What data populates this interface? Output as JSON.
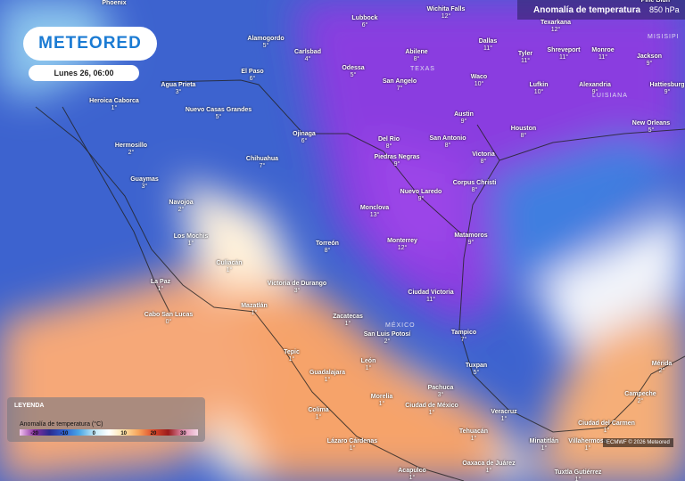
{
  "header": {
    "title": "Anomalía de temperatura",
    "level": "850 hPa"
  },
  "logo": "METEORED",
  "date": "Lunes 26, 06:00",
  "regions": [
    "TEXAS",
    "LUISIANA",
    "MISISIPI",
    "MÉXICO"
  ],
  "cities": [
    {
      "name": "Phoenix",
      "value": null
    },
    {
      "name": "Lubbock",
      "value": "6°"
    },
    {
      "name": "Wichita Falls",
      "value": "12°"
    },
    {
      "name": "Texarkana",
      "value": "12°"
    },
    {
      "name": "Pine Bluff",
      "value": null
    },
    {
      "name": "Alamogordo",
      "value": "5°"
    },
    {
      "name": "Carlsbad",
      "value": "4°"
    },
    {
      "name": "Abilene",
      "value": "8°"
    },
    {
      "name": "Dallas",
      "value": "11°"
    },
    {
      "name": "Tyler",
      "value": "11°"
    },
    {
      "name": "Shreveport",
      "value": "11°"
    },
    {
      "name": "Monroe",
      "value": "11°"
    },
    {
      "name": "Jackson",
      "value": "9°"
    },
    {
      "name": "El Paso",
      "value": "6°"
    },
    {
      "name": "Odessa",
      "value": "5°"
    },
    {
      "name": "San Angelo",
      "value": "7°"
    },
    {
      "name": "Waco",
      "value": "10°"
    },
    {
      "name": "Lufkin",
      "value": "10°"
    },
    {
      "name": "Alexandria",
      "value": "9°"
    },
    {
      "name": "Hattiesburg",
      "value": "9°"
    },
    {
      "name": "Agua Prieta",
      "value": "3°"
    },
    {
      "name": "Heroica Caborca",
      "value": "1°"
    },
    {
      "name": "Nuevo Casas Grandes",
      "value": "5°"
    },
    {
      "name": "Austin",
      "value": "9°"
    },
    {
      "name": "Houston",
      "value": "8°"
    },
    {
      "name": "New Orleans",
      "value": "5°"
    },
    {
      "name": "Ojinaga",
      "value": "6°"
    },
    {
      "name": "Del Rio",
      "value": "8°"
    },
    {
      "name": "San Antonio",
      "value": "8°"
    },
    {
      "name": "Hermosillo",
      "value": "2°"
    },
    {
      "name": "Chihuahua",
      "value": "7°"
    },
    {
      "name": "Piedras Negras",
      "value": "9°"
    },
    {
      "name": "Victoria",
      "value": "8°"
    },
    {
      "name": "Guaymas",
      "value": "3°"
    },
    {
      "name": "Corpus Christi",
      "value": "8°"
    },
    {
      "name": "Nuevo Laredo",
      "value": "9°"
    },
    {
      "name": "Navojoa",
      "value": "2°"
    },
    {
      "name": "Monclova",
      "value": "13°"
    },
    {
      "name": "Los Mochis",
      "value": "1°"
    },
    {
      "name": "Monterrey",
      "value": "12°"
    },
    {
      "name": "Matamoros",
      "value": "9°"
    },
    {
      "name": "Torreón",
      "value": "8°"
    },
    {
      "name": "Culiacán",
      "value": "1°"
    },
    {
      "name": "La Paz",
      "value": "1°"
    },
    {
      "name": "Victoria de Durango",
      "value": "3°"
    },
    {
      "name": "Ciudad Victoria",
      "value": "11°"
    },
    {
      "name": "Cabo San Lucas",
      "value": "0°"
    },
    {
      "name": "Mazatlán",
      "value": "1°"
    },
    {
      "name": "Zacatecas",
      "value": "1°"
    },
    {
      "name": "San Luis Potosí",
      "value": "2°"
    },
    {
      "name": "Tampico",
      "value": "7°"
    },
    {
      "name": "Tepic",
      "value": "1°"
    },
    {
      "name": "León",
      "value": "1°"
    },
    {
      "name": "Guadalajara",
      "value": "1°"
    },
    {
      "name": "Tuxpan",
      "value": "5°"
    },
    {
      "name": "Mérida",
      "value": "2°"
    },
    {
      "name": "Pachuca",
      "value": "3°"
    },
    {
      "name": "Morelia",
      "value": "1°"
    },
    {
      "name": "Campeche",
      "value": "2°"
    },
    {
      "name": "Colima",
      "value": "1°"
    },
    {
      "name": "Ciudad de México",
      "value": "1°"
    },
    {
      "name": "Veracruz",
      "value": "1°"
    },
    {
      "name": "Ciudad del Carmen",
      "value": "1°"
    },
    {
      "name": "Tehuacán",
      "value": "1°"
    },
    {
      "name": "Minatitlán",
      "value": "1°"
    },
    {
      "name": "Villahermosa",
      "value": "1°"
    },
    {
      "name": "Lázaro Cárdenas",
      "value": "1°"
    },
    {
      "name": "Oaxaca de Juárez",
      "value": "1°"
    },
    {
      "name": "Acapulco",
      "value": "1°"
    },
    {
      "name": "Tuxtla Gutiérrez",
      "value": "1°"
    }
  ],
  "legend": {
    "title": "LEYENDA",
    "subtitle": "Anomalía de temperatura (°C)",
    "ticks": [
      -20,
      -10,
      0,
      10,
      20,
      30
    ]
  },
  "credit": "ECMWF © 2026 Meteored"
}
